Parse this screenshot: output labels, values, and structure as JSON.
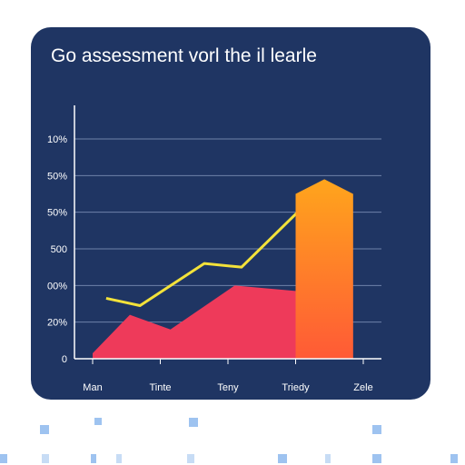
{
  "chart_data": {
    "type": "area",
    "title": "Go assessment vorl the il learle",
    "xlabel": "",
    "ylabel": "",
    "categories": [
      "Man",
      "Tinte",
      "Teny",
      "Triedy",
      "Zele"
    ],
    "yticks": [
      "0",
      "20%",
      "00%",
      "500",
      "50%",
      "50%",
      "10%"
    ],
    "ylim": [
      0,
      6
    ],
    "grid": true,
    "legend": "none",
    "series": [
      {
        "type": "area",
        "color": "#7a3494",
        "points": [
          [
            0.0,
            0.15
          ],
          [
            0.55,
            0.7
          ],
          [
            1.15,
            0.45
          ],
          [
            2.0,
            1.2
          ],
          [
            2.6,
            0.85
          ],
          [
            3.3,
            1.2
          ]
        ]
      },
      {
        "type": "area",
        "color": "#ee3a5a",
        "points": [
          [
            0.0,
            0.15
          ],
          [
            0.55,
            1.2
          ],
          [
            1.15,
            0.8
          ],
          [
            2.1,
            2.0
          ],
          [
            3.3,
            1.8
          ]
        ]
      },
      {
        "type": "line",
        "color": "#f3e23a",
        "points": [
          [
            0.2,
            1.65
          ],
          [
            0.7,
            1.45
          ],
          [
            1.65,
            2.6
          ],
          [
            2.2,
            2.5
          ],
          [
            3.25,
            4.4
          ]
        ]
      },
      {
        "type": "arrow",
        "color_top": "#ffa51c",
        "color_bottom": "#ff5a36",
        "x": 3.0,
        "x_end": 3.85,
        "value": 4.5,
        "peak": 4.9
      }
    ]
  }
}
